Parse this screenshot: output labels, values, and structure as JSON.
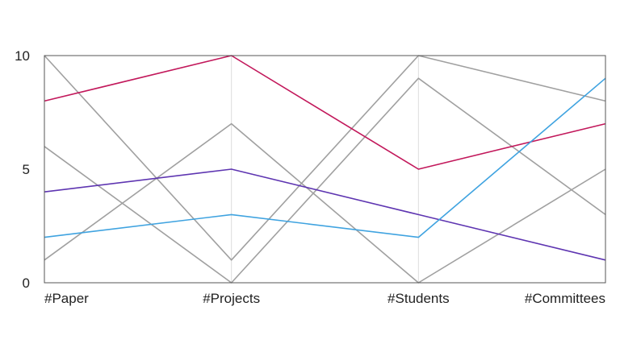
{
  "chart_data": {
    "type": "parallel-coordinates",
    "dimensions": [
      "#Paper",
      "#Projects",
      "#Students",
      "#Committees"
    ],
    "ylim": [
      0,
      10
    ],
    "yticks": [
      0,
      5,
      10
    ],
    "grid": "vertical lines at each dimension",
    "legend": "none",
    "series": [
      {
        "values": [
          10,
          1,
          10,
          8
        ],
        "color": "#a0a0a0"
      },
      {
        "values": [
          6,
          0,
          9,
          3
        ],
        "color": "#a0a0a0"
      },
      {
        "values": [
          1,
          7,
          0,
          5
        ],
        "color": "#a0a0a0"
      },
      {
        "values": [
          8,
          10,
          5,
          7
        ],
        "color": "#c2185b"
      },
      {
        "values": [
          4,
          5,
          3,
          1
        ],
        "color": "#5e35b1"
      },
      {
        "values": [
          2,
          3,
          2,
          9
        ],
        "color": "#3fa3e0"
      }
    ]
  }
}
